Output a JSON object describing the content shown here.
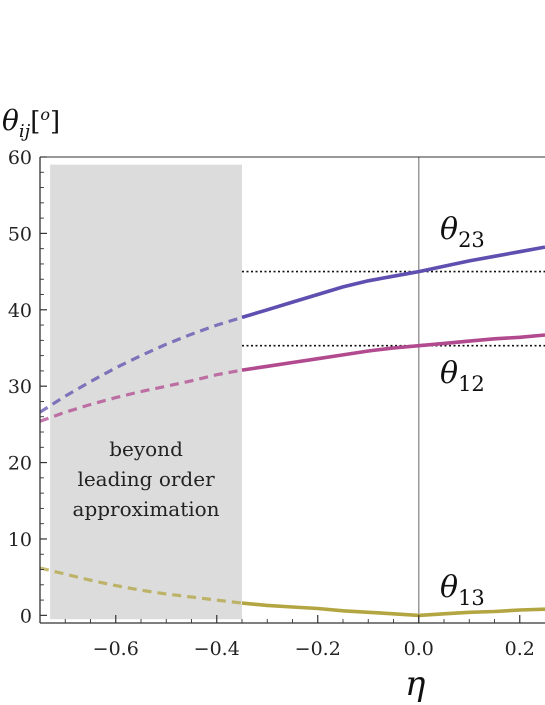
{
  "chart_data": {
    "type": "line",
    "ylabel": "θ_ij[°]",
    "ylabel_parts": {
      "main": "θ",
      "sub": "ij",
      "bracket": "[",
      "degree": "o",
      "bracket_close": "]"
    },
    "xlabel": "η",
    "xlim": [
      -0.75,
      0.25
    ],
    "ylim": [
      -1,
      60
    ],
    "xticks": [
      -0.6,
      -0.4,
      -0.2,
      0.0,
      0.2
    ],
    "xtick_labels": [
      "−0.6",
      "−0.4",
      "−0.2",
      "0.0",
      "0.2"
    ],
    "yticks": [
      0,
      10,
      20,
      30,
      40,
      50,
      60
    ],
    "ytick_labels": [
      "0",
      "10",
      "20",
      "30",
      "40",
      "50",
      "60"
    ],
    "vertical_line_x": 0.0,
    "shaded_region": {
      "x_range": [
        -0.73,
        -0.35
      ],
      "y_range": [
        -0.5,
        59
      ],
      "label_lines": [
        "beyond",
        "leading order",
        "approximation"
      ],
      "color": "#dcdcdc"
    },
    "dashed_until_x": -0.35,
    "series": [
      {
        "name": "θ23",
        "label_main": "θ",
        "label_sub": "23",
        "color": "#5f4fb0",
        "x": [
          -0.75,
          -0.7,
          -0.65,
          -0.6,
          -0.55,
          -0.5,
          -0.45,
          -0.4,
          -0.35,
          -0.3,
          -0.25,
          -0.2,
          -0.15,
          -0.1,
          -0.05,
          0.0,
          0.05,
          0.1,
          0.15,
          0.2,
          0.25
        ],
        "y": [
          26.6,
          28.7,
          30.6,
          32.4,
          34.0,
          35.5,
          36.8,
          38.0,
          39.0,
          40.0,
          41.0,
          42.0,
          43.0,
          43.8,
          44.4,
          45.0,
          45.7,
          46.4,
          47.0,
          47.6,
          48.2
        ],
        "reference_line": 45.0
      },
      {
        "name": "θ12",
        "label_main": "θ",
        "label_sub": "12",
        "color": "#b24a8f",
        "x": [
          -0.75,
          -0.7,
          -0.65,
          -0.6,
          -0.55,
          -0.5,
          -0.45,
          -0.4,
          -0.35,
          -0.3,
          -0.25,
          -0.2,
          -0.15,
          -0.1,
          -0.05,
          0.0,
          0.05,
          0.1,
          0.15,
          0.2,
          0.25
        ],
        "y": [
          25.4,
          26.6,
          27.6,
          28.5,
          29.3,
          30.0,
          30.7,
          31.5,
          32.1,
          32.6,
          33.1,
          33.6,
          34.1,
          34.6,
          35.0,
          35.3,
          35.6,
          35.9,
          36.2,
          36.4,
          36.7
        ],
        "reference_line": 35.3
      },
      {
        "name": "θ13",
        "label_main": "θ",
        "label_sub": "13",
        "color": "#b3a642",
        "x": [
          -0.75,
          -0.7,
          -0.65,
          -0.6,
          -0.55,
          -0.5,
          -0.45,
          -0.4,
          -0.35,
          -0.3,
          -0.25,
          -0.2,
          -0.15,
          -0.1,
          -0.05,
          0.0,
          0.05,
          0.1,
          0.15,
          0.2,
          0.25
        ],
        "y": [
          6.2,
          5.4,
          4.6,
          3.9,
          3.3,
          2.8,
          2.4,
          2.0,
          1.6,
          1.3,
          1.1,
          0.9,
          0.6,
          0.4,
          0.2,
          0.0,
          0.2,
          0.4,
          0.5,
          0.7,
          0.8
        ]
      }
    ]
  }
}
